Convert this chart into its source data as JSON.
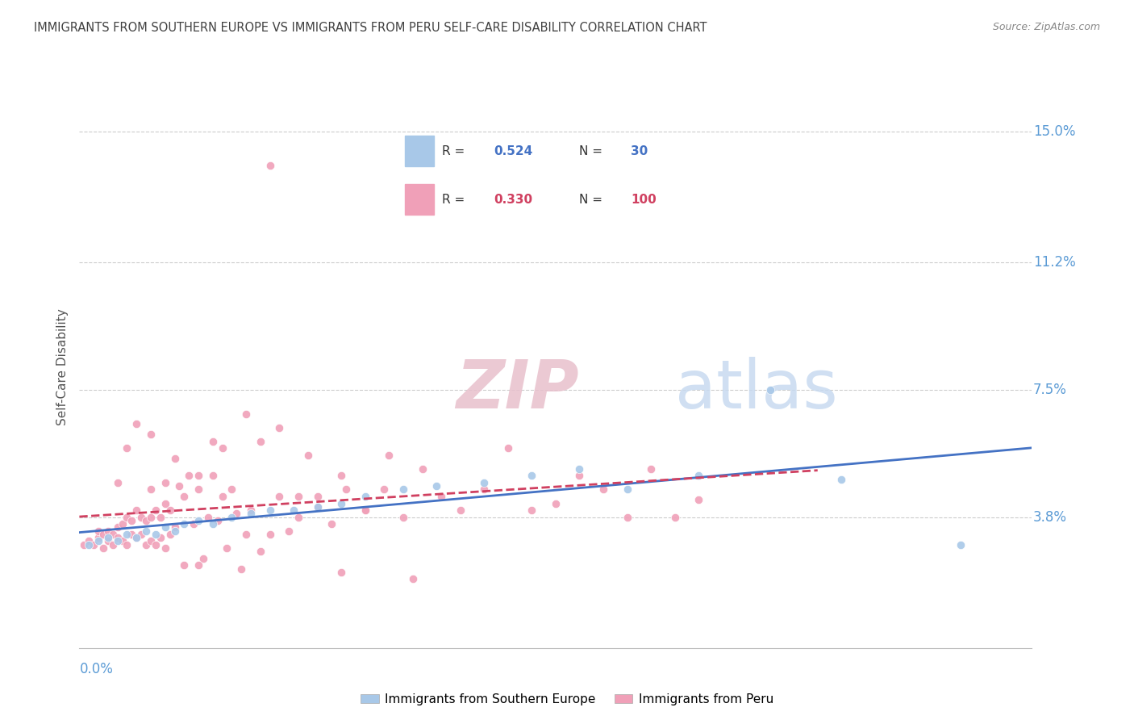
{
  "title": "IMMIGRANTS FROM SOUTHERN EUROPE VS IMMIGRANTS FROM PERU SELF-CARE DISABILITY CORRELATION CHART",
  "source": "Source: ZipAtlas.com",
  "ylabel": "Self-Care Disability",
  "ytick_values": [
    0.038,
    0.075,
    0.112,
    0.15
  ],
  "ytick_labels": [
    "3.8%",
    "7.5%",
    "11.2%",
    "15.0%"
  ],
  "xmin": 0.0,
  "xmax": 0.2,
  "ymin": 0.0,
  "ymax": 0.163,
  "blue_color": "#a8c8e8",
  "pink_color": "#f0a0b8",
  "blue_line_color": "#4472c4",
  "pink_line_color": "#d04060",
  "axis_label_color": "#5b9bd5",
  "title_color": "#404040",
  "r_blue": 0.524,
  "n_blue": 30,
  "r_pink": 0.33,
  "n_pink": 100,
  "legend_label_blue": "Immigrants from Southern Europe",
  "legend_label_pink": "Immigrants from Peru",
  "blue_scatter_x": [
    0.002,
    0.004,
    0.006,
    0.008,
    0.01,
    0.012,
    0.014,
    0.016,
    0.018,
    0.02,
    0.022,
    0.025,
    0.028,
    0.032,
    0.036,
    0.04,
    0.045,
    0.05,
    0.055,
    0.06,
    0.068,
    0.075,
    0.085,
    0.095,
    0.105,
    0.115,
    0.13,
    0.145,
    0.16,
    0.185
  ],
  "blue_scatter_y": [
    0.03,
    0.031,
    0.032,
    0.031,
    0.033,
    0.032,
    0.034,
    0.033,
    0.035,
    0.034,
    0.036,
    0.037,
    0.036,
    0.038,
    0.039,
    0.04,
    0.04,
    0.041,
    0.042,
    0.044,
    0.046,
    0.047,
    0.048,
    0.05,
    0.052,
    0.046,
    0.05,
    0.075,
    0.049,
    0.03
  ],
  "pink_scatter_x": [
    0.001,
    0.002,
    0.003,
    0.004,
    0.004,
    0.005,
    0.005,
    0.006,
    0.006,
    0.007,
    0.007,
    0.008,
    0.008,
    0.009,
    0.009,
    0.01,
    0.01,
    0.011,
    0.011,
    0.012,
    0.012,
    0.013,
    0.013,
    0.014,
    0.014,
    0.015,
    0.015,
    0.016,
    0.016,
    0.017,
    0.017,
    0.018,
    0.018,
    0.019,
    0.019,
    0.02,
    0.021,
    0.022,
    0.023,
    0.024,
    0.025,
    0.026,
    0.027,
    0.028,
    0.029,
    0.03,
    0.031,
    0.032,
    0.033,
    0.034,
    0.035,
    0.036,
    0.038,
    0.04,
    0.042,
    0.044,
    0.046,
    0.048,
    0.05,
    0.053,
    0.056,
    0.06,
    0.064,
    0.068,
    0.072,
    0.076,
    0.08,
    0.085,
    0.09,
    0.095,
    0.1,
    0.105,
    0.11,
    0.115,
    0.12,
    0.125,
    0.13,
    0.008,
    0.01,
    0.012,
    0.015,
    0.018,
    0.02,
    0.022,
    0.025,
    0.028,
    0.03,
    0.035,
    0.038,
    0.042,
    0.046,
    0.05,
    0.055,
    0.06,
    0.065,
    0.07,
    0.055,
    0.04,
    0.025,
    0.015
  ],
  "pink_scatter_y": [
    0.03,
    0.031,
    0.03,
    0.032,
    0.034,
    0.029,
    0.033,
    0.031,
    0.034,
    0.03,
    0.033,
    0.032,
    0.035,
    0.031,
    0.036,
    0.03,
    0.038,
    0.033,
    0.037,
    0.032,
    0.04,
    0.033,
    0.038,
    0.03,
    0.037,
    0.031,
    0.038,
    0.03,
    0.04,
    0.032,
    0.038,
    0.029,
    0.042,
    0.033,
    0.04,
    0.035,
    0.047,
    0.044,
    0.05,
    0.036,
    0.046,
    0.026,
    0.038,
    0.05,
    0.037,
    0.044,
    0.029,
    0.046,
    0.039,
    0.023,
    0.033,
    0.04,
    0.028,
    0.033,
    0.044,
    0.034,
    0.038,
    0.056,
    0.044,
    0.036,
    0.046,
    0.04,
    0.046,
    0.038,
    0.052,
    0.044,
    0.04,
    0.046,
    0.058,
    0.04,
    0.042,
    0.05,
    0.046,
    0.038,
    0.052,
    0.038,
    0.043,
    0.048,
    0.058,
    0.065,
    0.062,
    0.048,
    0.055,
    0.024,
    0.024,
    0.06,
    0.058,
    0.068,
    0.06,
    0.064,
    0.044,
    0.041,
    0.05,
    0.04,
    0.056,
    0.02,
    0.022,
    0.14,
    0.05,
    0.046
  ]
}
